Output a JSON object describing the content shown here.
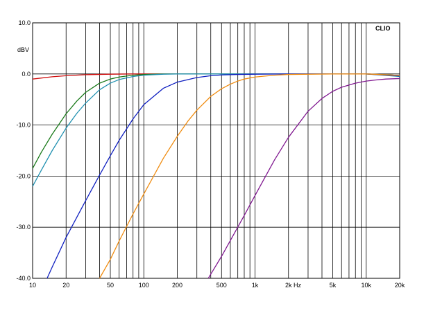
{
  "chart_data": {
    "type": "line",
    "title": "",
    "brand": "CLIO",
    "ylabel": "dBV",
    "xlabel": "Hz",
    "x_scale": "log",
    "xlim": [
      10,
      20000
    ],
    "ylim": [
      -40,
      10
    ],
    "grid": true,
    "x_ticks": [
      {
        "value": 10,
        "label": "10"
      },
      {
        "value": 20,
        "label": "20"
      },
      {
        "value": 50,
        "label": "50"
      },
      {
        "value": 100,
        "label": "100"
      },
      {
        "value": 200,
        "label": "200"
      },
      {
        "value": 500,
        "label": "500"
      },
      {
        "value": 1000,
        "label": "1k"
      },
      {
        "value": 2000,
        "label": "2k"
      },
      {
        "value": 5000,
        "label": "5k"
      },
      {
        "value": 10000,
        "label": "10k"
      },
      {
        "value": 20000,
        "label": "20k"
      }
    ],
    "y_ticks": [
      {
        "value": 10,
        "label": "10.0"
      },
      {
        "value": 0,
        "label": "0.0"
      },
      {
        "value": -10,
        "label": "-10.0"
      },
      {
        "value": -20,
        "label": "-20.0"
      },
      {
        "value": -30,
        "label": "-30.0"
      },
      {
        "value": -40,
        "label": "-40.0"
      }
    ],
    "series": [
      {
        "color": "#d01010",
        "x": [
          10,
          12,
          15,
          20,
          30,
          50,
          80,
          100,
          200,
          500,
          1000,
          5000,
          10000,
          20000
        ],
        "y": [
          -1.0,
          -0.8,
          -0.55,
          -0.35,
          -0.15,
          -0.05,
          0,
          0,
          0,
          0,
          0,
          0,
          0,
          -0.3
        ]
      },
      {
        "color": "#1a7a1a",
        "x": [
          10,
          12,
          15,
          20,
          25,
          30,
          40,
          50,
          60,
          80,
          100,
          150,
          200,
          500,
          1000,
          5000,
          10000,
          20000
        ],
        "y": [
          -18.5,
          -15.3,
          -11.8,
          -7.8,
          -5.3,
          -3.6,
          -1.8,
          -1.0,
          -0.6,
          -0.25,
          -0.12,
          0,
          0,
          0,
          0,
          0,
          0,
          -0.3
        ]
      },
      {
        "color": "#2090b0",
        "x": [
          10,
          12,
          15,
          20,
          25,
          30,
          40,
          50,
          60,
          80,
          100,
          150,
          200,
          500,
          1000,
          5000,
          10000,
          20000
        ],
        "y": [
          -22.0,
          -18.8,
          -15.0,
          -10.6,
          -7.7,
          -5.7,
          -3.1,
          -1.8,
          -1.1,
          -0.5,
          -0.25,
          -0.05,
          0,
          0,
          0,
          0,
          0,
          -0.5
        ]
      },
      {
        "color": "#1020c0",
        "x": [
          13.5,
          15,
          20,
          30,
          40,
          50,
          60,
          80,
          100,
          150,
          200,
          300,
          400,
          500,
          700,
          1000,
          2000,
          5000,
          10000,
          20000
        ],
        "y": [
          -40.0,
          -37.8,
          -32.0,
          -24.8,
          -19.8,
          -16.0,
          -13.0,
          -8.8,
          -6.0,
          -2.8,
          -1.6,
          -0.7,
          -0.35,
          -0.2,
          -0.1,
          -0.05,
          0,
          0,
          0,
          -0.4
        ]
      },
      {
        "color": "#f08c10",
        "x": [
          40,
          50,
          60,
          80,
          100,
          150,
          200,
          250,
          300,
          400,
          500,
          600,
          700,
          800,
          1000,
          1500,
          2000,
          5000,
          10000,
          20000
        ],
        "y": [
          -40.0,
          -36.3,
          -32.7,
          -27.4,
          -23.5,
          -16.5,
          -12.2,
          -9.2,
          -7.1,
          -4.4,
          -2.9,
          -2.0,
          -1.4,
          -1.0,
          -0.6,
          -0.25,
          -0.1,
          0,
          0,
          -0.3
        ]
      },
      {
        "color": "#801890",
        "x": [
          380,
          400,
          500,
          600,
          800,
          1000,
          1500,
          2000,
          3000,
          4000,
          5000,
          6000,
          8000,
          10000,
          12000,
          15000,
          20000
        ],
        "y": [
          -40.0,
          -39.2,
          -35.7,
          -32.6,
          -27.7,
          -23.8,
          -16.8,
          -12.4,
          -7.3,
          -4.8,
          -3.4,
          -2.6,
          -1.8,
          -1.4,
          -1.2,
          -1.0,
          -0.9
        ]
      }
    ]
  }
}
